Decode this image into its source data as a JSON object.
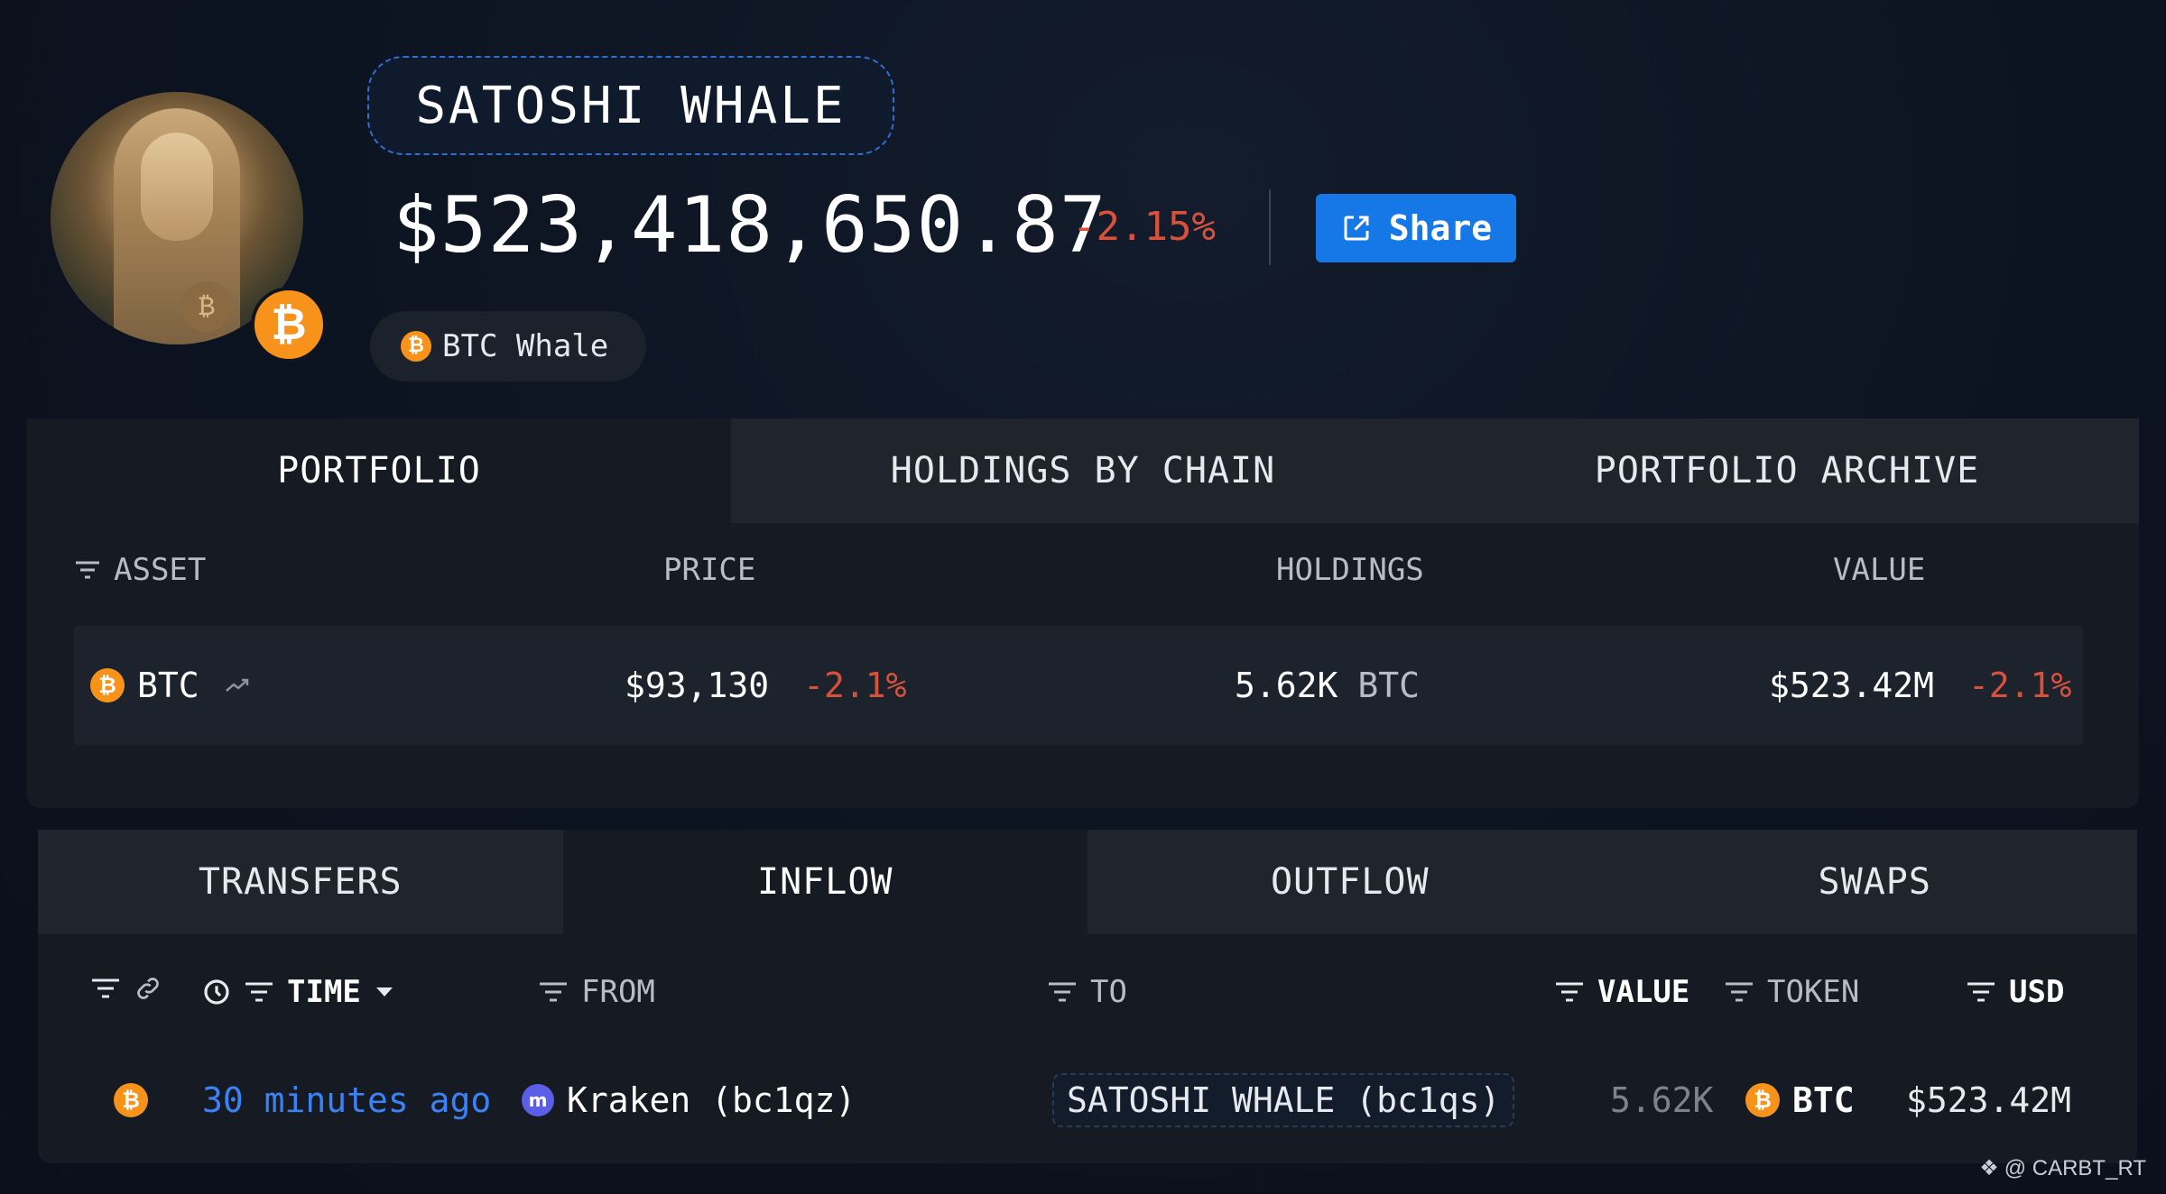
{
  "header": {
    "name": "SATOSHI WHALE",
    "total_value": "$523,418,650.87",
    "total_change": "-2.15%",
    "share_label": "Share",
    "tag_label": "BTC Whale",
    "badge_symbol": "₿"
  },
  "portfolio_tabs": [
    {
      "label": "PORTFOLIO",
      "active": true
    },
    {
      "label": "HOLDINGS BY CHAIN",
      "active": false
    },
    {
      "label": "PORTFOLIO ARCHIVE",
      "active": false
    }
  ],
  "portfolio_table": {
    "columns": {
      "asset": "ASSET",
      "price": "PRICE",
      "holdings": "HOLDINGS",
      "value": "VALUE"
    },
    "rows": [
      {
        "asset": "BTC",
        "price": "$93,130",
        "price_change": "-2.1%",
        "holdings_amount": "5.62K",
        "holdings_unit": "BTC",
        "value": "$523.42M",
        "value_change": "-2.1%"
      }
    ]
  },
  "activity_tabs": [
    {
      "label": "TRANSFERS",
      "active": false
    },
    {
      "label": "INFLOW",
      "active": true
    },
    {
      "label": "OUTFLOW",
      "active": false
    },
    {
      "label": "SWAPS",
      "active": false
    }
  ],
  "activity_table": {
    "columns": {
      "time": "TIME",
      "from": "FROM",
      "to": "TO",
      "value": "VALUE",
      "token": "TOKEN",
      "usd": "USD"
    },
    "rows": [
      {
        "time": "30 minutes ago",
        "from": "Kraken (bc1qz)",
        "to": "SATOSHI WHALE (bc1qs)",
        "value": "5.62K",
        "token": "BTC",
        "usd": "$523.42M"
      }
    ]
  },
  "watermark": "@ CARBT_RT",
  "colors": {
    "accent": "#1677e6",
    "negative": "#d8513c",
    "btc": "#f7931a",
    "link": "#3b82f6"
  }
}
